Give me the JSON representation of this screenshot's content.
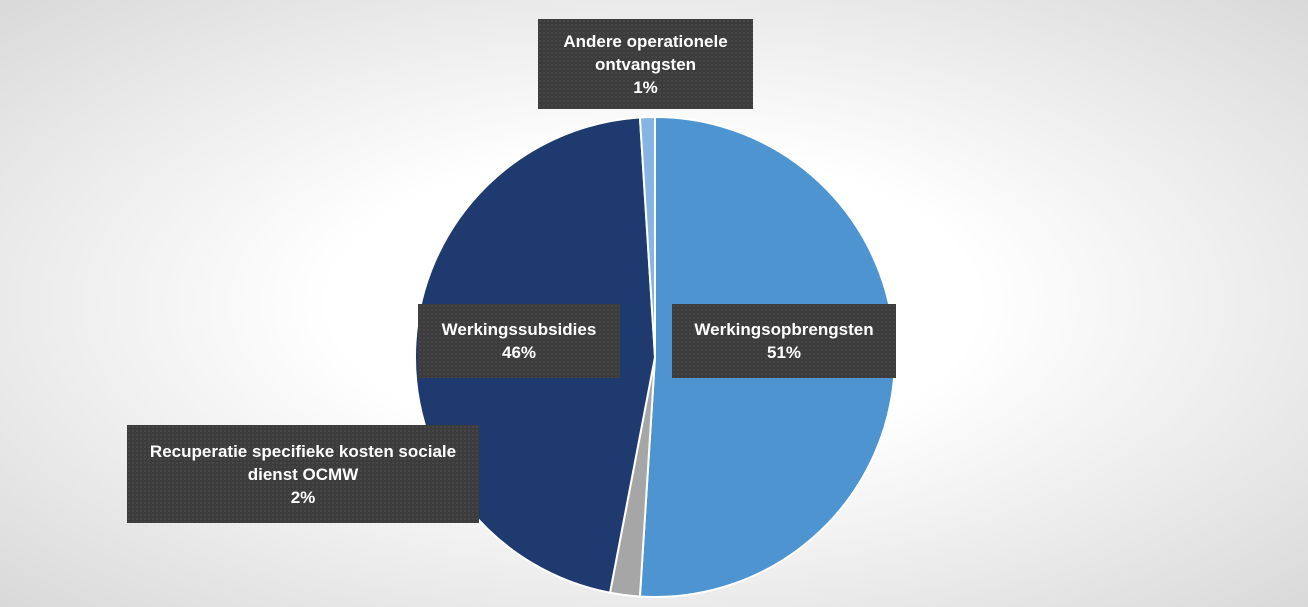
{
  "chart_data": {
    "type": "pie",
    "categories": [
      "Werkingsopbrengsten",
      "Recuperatie specifieke kosten sociale dienst OCMW",
      "Werkingssubsidies",
      "Andere operationele ontvangsten"
    ],
    "values": [
      51,
      2,
      46,
      1
    ],
    "value_labels": [
      "51%",
      "2%",
      "46%",
      "1%"
    ],
    "colors": [
      "#4d94d1",
      "#a6a6a6",
      "#1e3a6f",
      "#86b5e3"
    ]
  }
}
